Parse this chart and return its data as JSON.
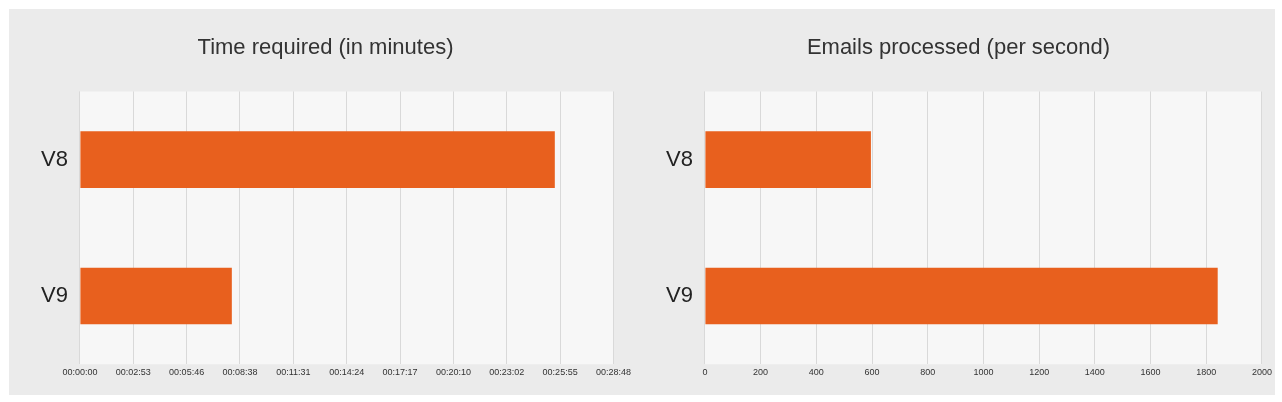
{
  "chart_data": [
    {
      "type": "bar",
      "orientation": "horizontal",
      "title": "Time required (in minutes)",
      "categories": [
        "V8",
        "V9"
      ],
      "series": [
        {
          "color": "#e8601e",
          "values": [
            1538,
            492
          ]
        }
      ],
      "xlim": [
        0,
        1728
      ],
      "xticks": [
        {
          "value": 0,
          "label": "00:00:00"
        },
        {
          "value": 172.8,
          "label": "00:02:53"
        },
        {
          "value": 345.6,
          "label": "00:05:46"
        },
        {
          "value": 518.4,
          "label": "00:08:38"
        },
        {
          "value": 691.2,
          "label": "00:11:31"
        },
        {
          "value": 864,
          "label": "00:14:24"
        },
        {
          "value": 1036.8,
          "label": "00:17:17"
        },
        {
          "value": 1209.6,
          "label": "00:20:10"
        },
        {
          "value": 1382.4,
          "label": "00:23:02"
        },
        {
          "value": 1555.2,
          "label": "00:25:55"
        },
        {
          "value": 1728,
          "label": "00:28:48"
        }
      ],
      "grid": "x",
      "legend": false
    },
    {
      "type": "bar",
      "orientation": "horizontal",
      "title": "Emails processed (per second)",
      "categories": [
        "V8",
        "V9"
      ],
      "series": [
        {
          "color": "#e8601e",
          "values": [
            596,
            1841
          ]
        }
      ],
      "xlim": [
        0,
        2000
      ],
      "xticks": [
        0,
        200,
        400,
        600,
        800,
        1000,
        1200,
        1400,
        1600,
        1800,
        2000
      ],
      "grid": "x",
      "legend": false
    }
  ]
}
